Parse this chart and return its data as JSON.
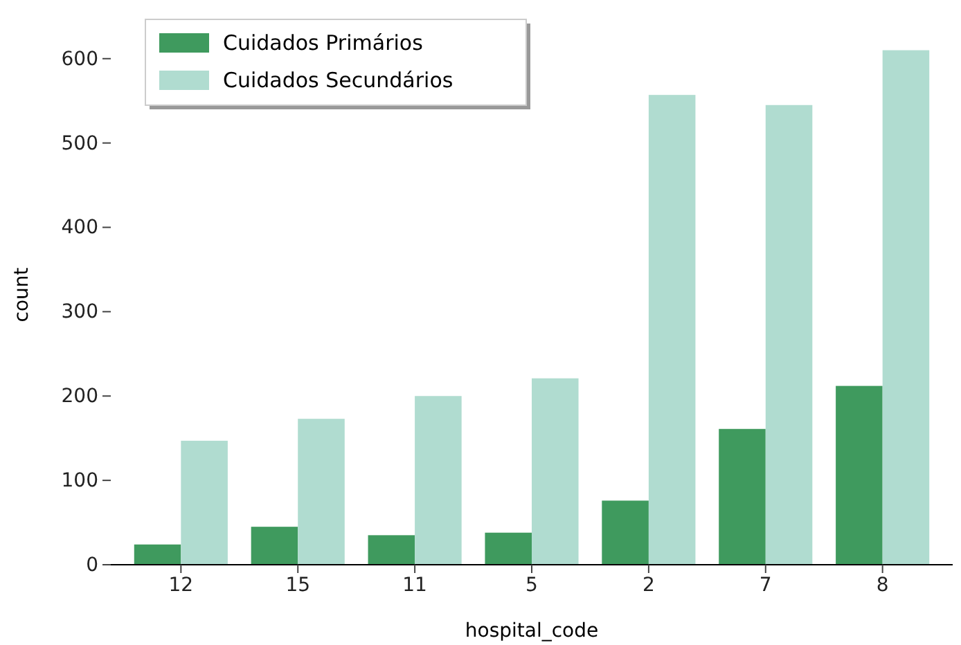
{
  "chart_data": {
    "type": "bar",
    "xlabel": "hospital_code",
    "ylabel": "count",
    "categories": [
      "12",
      "15",
      "11",
      "5",
      "2",
      "7",
      "8"
    ],
    "series": [
      {
        "name": "Cuidados Primários",
        "color": "#3f9a5e",
        "values": [
          24,
          45,
          35,
          38,
          76,
          161,
          212
        ]
      },
      {
        "name": "Cuidados Secundários",
        "color": "#b0dcd0",
        "values": [
          147,
          173,
          200,
          221,
          557,
          545,
          610
        ]
      }
    ],
    "ylim": [
      0,
      640
    ],
    "yticks": [
      0,
      100,
      200,
      300,
      400,
      500,
      600
    ],
    "legend": "top left",
    "grid": false
  }
}
